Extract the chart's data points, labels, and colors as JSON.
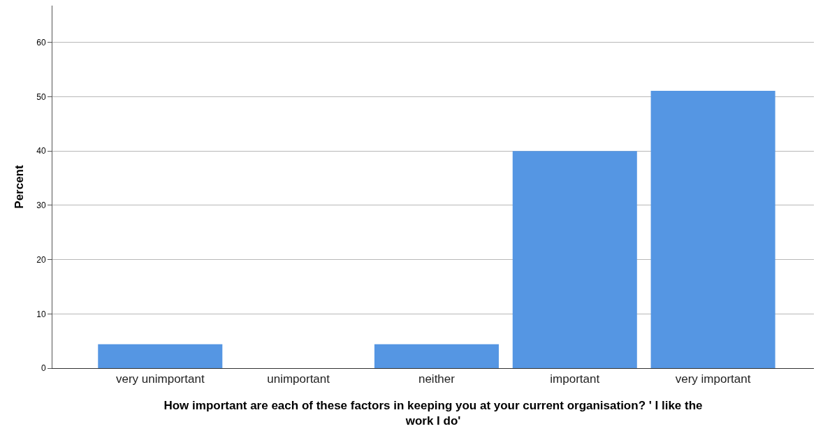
{
  "chart_data": {
    "type": "bar",
    "categories": [
      "very unimportant",
      "unimportant",
      "neither",
      "important",
      "very important"
    ],
    "values": [
      4.4,
      0,
      4.4,
      40.0,
      51.1
    ],
    "color": "#5596e3",
    "xlabel": "How important are each of these factors in keeping you at your current organisation? ' I like the work I do'",
    "ylabel": "Percent",
    "ylim": [
      0,
      66.8
    ],
    "yticks": [
      0,
      10,
      20,
      30,
      40,
      50,
      60
    ],
    "grid": "y"
  }
}
